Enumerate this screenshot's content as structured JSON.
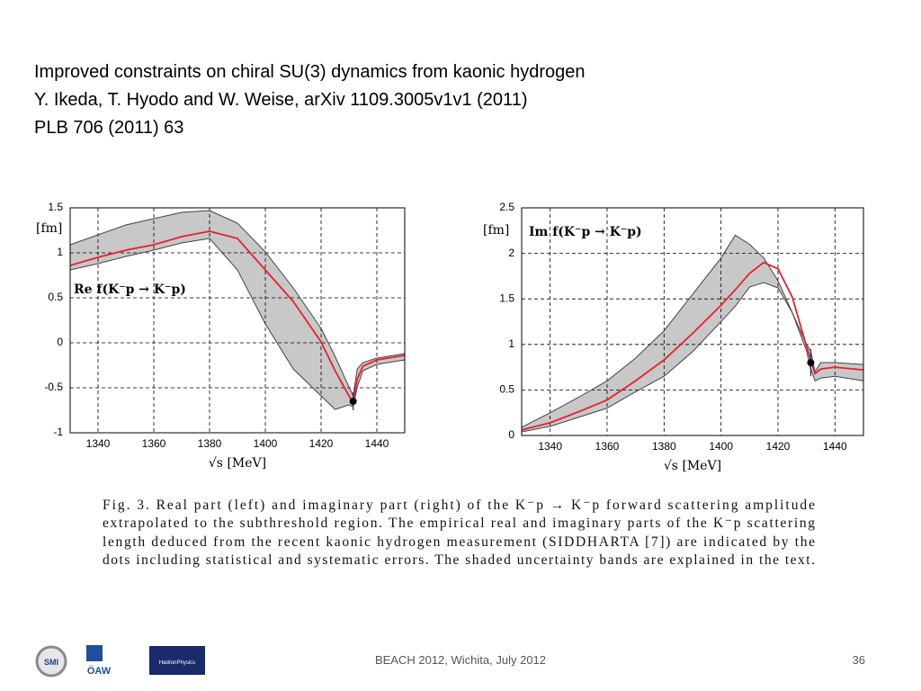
{
  "header": {
    "lines": [
      "Improved constraints on chiral SU(3) dynamics from kaonic hydrogen",
      "Y. Ikeda, T. Hyodo and W. Weise, arXiv 1109.3005v1v1 (2011)",
      "PLB 706 (2011) 63"
    ]
  },
  "chart_data": [
    {
      "type": "band-line",
      "xlabel": "√s  [MeV]",
      "unit_label": "[fm]",
      "annotation": "Re f(K⁻p → K⁻p)",
      "x": [
        1330,
        1340,
        1350,
        1360,
        1370,
        1380,
        1390,
        1400,
        1410,
        1420,
        1425,
        1430,
        1431.5,
        1433,
        1435,
        1440,
        1450
      ],
      "series": [
        {
          "color": "#aaaaaa",
          "values": [
            1.09,
            1.2,
            1.31,
            1.38,
            1.45,
            1.47,
            1.33,
            1.01,
            0.61,
            0.16,
            -0.15,
            -0.49,
            -0.59,
            -0.29,
            -0.22,
            -0.17,
            -0.12
          ]
        },
        {
          "color": "#aaaaaa",
          "values": [
            0.81,
            0.88,
            0.96,
            1.03,
            1.11,
            1.16,
            0.81,
            0.21,
            -0.29,
            -0.59,
            -0.74,
            -0.69,
            -0.71,
            -0.49,
            -0.31,
            -0.24,
            -0.19
          ]
        },
        {
          "color": "#e8202a",
          "values": [
            0.86,
            0.95,
            1.03,
            1.09,
            1.18,
            1.24,
            1.16,
            0.81,
            0.46,
            0.01,
            -0.31,
            -0.59,
            -0.66,
            -0.4,
            -0.26,
            -0.19,
            -0.14
          ]
        }
      ],
      "points": [
        {
          "x": 1431.5,
          "y": -0.65,
          "error": 0.1
        }
      ],
      "xlim": [
        1330,
        1450
      ],
      "xticks": [
        1340,
        1360,
        1380,
        1400,
        1420,
        1440
      ],
      "ylim": [
        -1,
        1.5
      ],
      "yticks": [
        -1,
        -0.5,
        0,
        0.5,
        1,
        1.5
      ],
      "grid": true
    },
    {
      "type": "band-line",
      "xlabel": "√s  [MeV]",
      "unit_label": "[fm]",
      "annotation": "Im f(K⁻p → K⁻p)",
      "x": [
        1330,
        1340,
        1350,
        1360,
        1370,
        1380,
        1390,
        1400,
        1405,
        1410,
        1415,
        1420,
        1425,
        1430,
        1431.5,
        1433,
        1435,
        1440,
        1450
      ],
      "series": [
        {
          "color": "#aaaaaa",
          "values": [
            0.09,
            0.25,
            0.42,
            0.6,
            0.85,
            1.15,
            1.55,
            1.95,
            2.2,
            2.1,
            1.95,
            1.7,
            1.35,
            1.0,
            0.93,
            0.7,
            0.8,
            0.8,
            0.78
          ]
        },
        {
          "color": "#aaaaaa",
          "values": [
            0.04,
            0.1,
            0.2,
            0.3,
            0.48,
            0.65,
            0.92,
            1.25,
            1.42,
            1.63,
            1.68,
            1.62,
            1.35,
            0.93,
            0.73,
            0.6,
            0.63,
            0.65,
            0.6
          ]
        },
        {
          "color": "#e8202a",
          "values": [
            0.06,
            0.14,
            0.26,
            0.39,
            0.6,
            0.83,
            1.12,
            1.43,
            1.6,
            1.78,
            1.9,
            1.83,
            1.52,
            0.98,
            0.83,
            0.68,
            0.73,
            0.75,
            0.72
          ]
        }
      ],
      "points": [
        {
          "x": 1431.5,
          "y": 0.8,
          "error": 0.15
        }
      ],
      "xlim": [
        1330,
        1450
      ],
      "xticks": [
        1340,
        1360,
        1380,
        1400,
        1420,
        1440
      ],
      "ylim": [
        0,
        2.5
      ],
      "yticks": [
        0,
        0.5,
        1,
        1.5,
        2,
        2.5
      ],
      "grid": true
    }
  ],
  "caption": {
    "lines": [
      "Fig. 3. Real part (left) and imaginary part (right) of the K⁻p → K⁻p forward scattering amplitude",
      "extrapolated to the subthreshold region. The empirical real and imaginary parts of the K⁻p scattering",
      "length deduced from the recent kaonic hydrogen measurement (SIDDHARTA [7]) are indicated by the",
      "dots including statistical and systematic errors. The shaded uncertainty bands are explained in the text."
    ]
  },
  "footer": {
    "text": "BEACH 2012, Wichita, July 2012",
    "page": "36",
    "logos": [
      "SMI",
      "ÖAW",
      "HadronPhysics"
    ]
  }
}
